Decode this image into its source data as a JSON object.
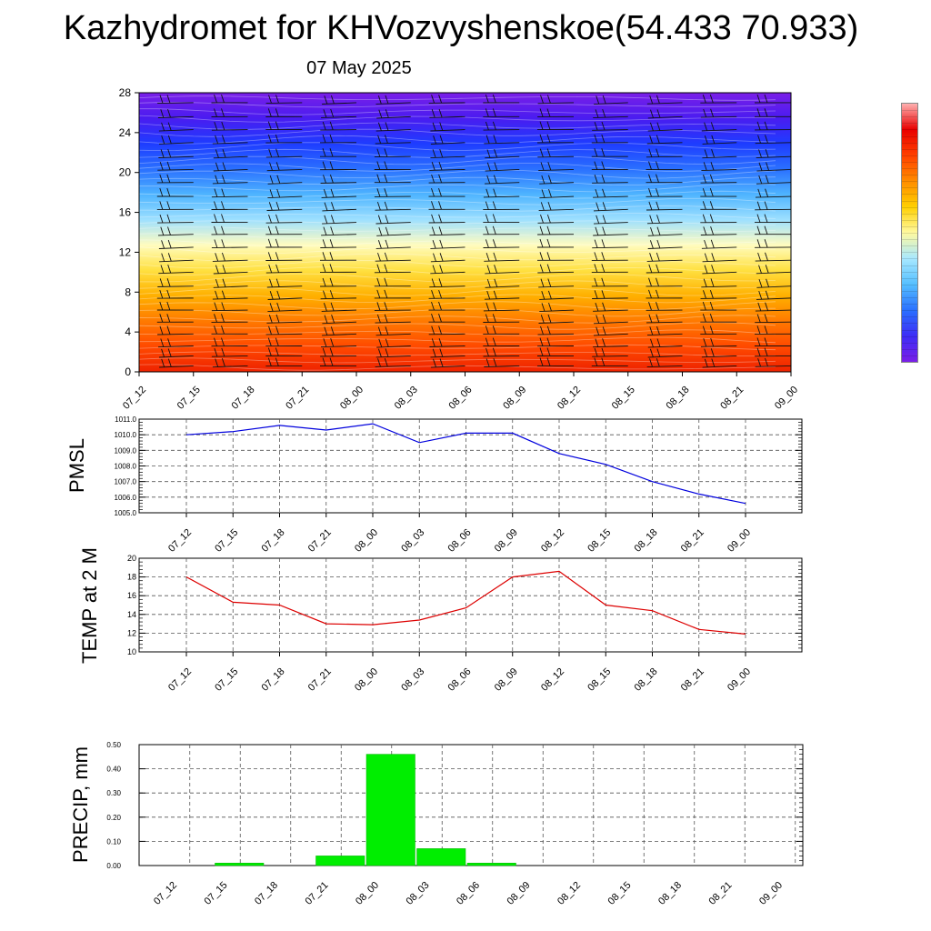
{
  "title": "Kazhydromet for KHVozvyshenskoe(54.433 70.933)",
  "subtitle": "07 May 2025",
  "colors": {
    "pmsl_line": "#0000dd",
    "temp_line": "#dd0000",
    "precip_bar": "#00ee00",
    "contour_palette": [
      "#7a1fe8",
      "#4a1cf0",
      "#1e3cff",
      "#2a70ff",
      "#4eb4ff",
      "#9ee0ff",
      "#fffcc0",
      "#ffe040",
      "#ffb000",
      "#ff7a00",
      "#ff4a00",
      "#ee2200"
    ],
    "colorbar_palette": [
      "#7a1fe8",
      "#3d2ef5",
      "#2a70ff",
      "#55bfff",
      "#a8e8ff",
      "#fff9a0",
      "#ffd000",
      "#ff8c00",
      "#ff4000",
      "#e80000",
      "#ffb0b0"
    ]
  },
  "chart_data": [
    {
      "type": "heatmap",
      "name": "vertical-profile",
      "categories": [
        "07_12",
        "07_15",
        "07_18",
        "07_21",
        "08_00",
        "08_03",
        "08_06",
        "08_09",
        "08_12",
        "08_15",
        "08_18",
        "08_21",
        "09_00"
      ],
      "yticks": [
        0,
        4,
        8,
        12,
        16,
        20,
        24,
        28
      ],
      "ylim": [
        0,
        28
      ],
      "wind_barbs": true
    },
    {
      "type": "line",
      "name": "pmsl",
      "ylabel": "PMSL",
      "categories": [
        "07_12",
        "07_15",
        "07_18",
        "07_21",
        "08_00",
        "08_03",
        "08_06",
        "08_09",
        "08_12",
        "08_15",
        "08_18",
        "08_21",
        "09_00"
      ],
      "values": [
        1010.0,
        1010.2,
        1010.6,
        1010.3,
        1010.7,
        1009.5,
        1010.1,
        1010.1,
        1008.8,
        1008.1,
        1007.0,
        1006.2,
        1005.6
      ],
      "yticks": [
        "1005.0",
        "1006.0",
        "1007.0",
        "1008.0",
        "1009.0",
        "1010.0",
        "1011.0"
      ],
      "ylim": [
        1005,
        1011
      ],
      "grid": true
    },
    {
      "type": "line",
      "name": "temp",
      "ylabel": "TEMP at 2 M",
      "categories": [
        "07_12",
        "07_15",
        "07_18",
        "07_21",
        "08_00",
        "08_03",
        "08_06",
        "08_09",
        "08_12",
        "08_15",
        "08_18",
        "08_21",
        "09_00"
      ],
      "values": [
        18.0,
        15.3,
        15.0,
        13.0,
        12.9,
        13.4,
        14.7,
        18.0,
        18.6,
        15.0,
        14.4,
        12.4,
        11.9
      ],
      "yticks": [
        "10",
        "12",
        "14",
        "16",
        "18",
        "20"
      ],
      "ylim": [
        10,
        20
      ],
      "grid": true
    },
    {
      "type": "bar",
      "name": "precip",
      "ylabel": "PRECIP, mm",
      "categories": [
        "07_12",
        "07_15",
        "07_18",
        "07_21",
        "08_00",
        "08_03",
        "08_06",
        "08_09",
        "08_12",
        "08_15",
        "08_18",
        "08_21",
        "09_00"
      ],
      "values": [
        0,
        0.01,
        0,
        0.04,
        0.46,
        0.07,
        0.01,
        0,
        0,
        0,
        0,
        0,
        0
      ],
      "yticks": [
        "0.00",
        "0.10",
        "0.20",
        "0.30",
        "0.40",
        "0.50"
      ],
      "ylim": [
        0,
        0.5
      ],
      "grid": true
    }
  ]
}
